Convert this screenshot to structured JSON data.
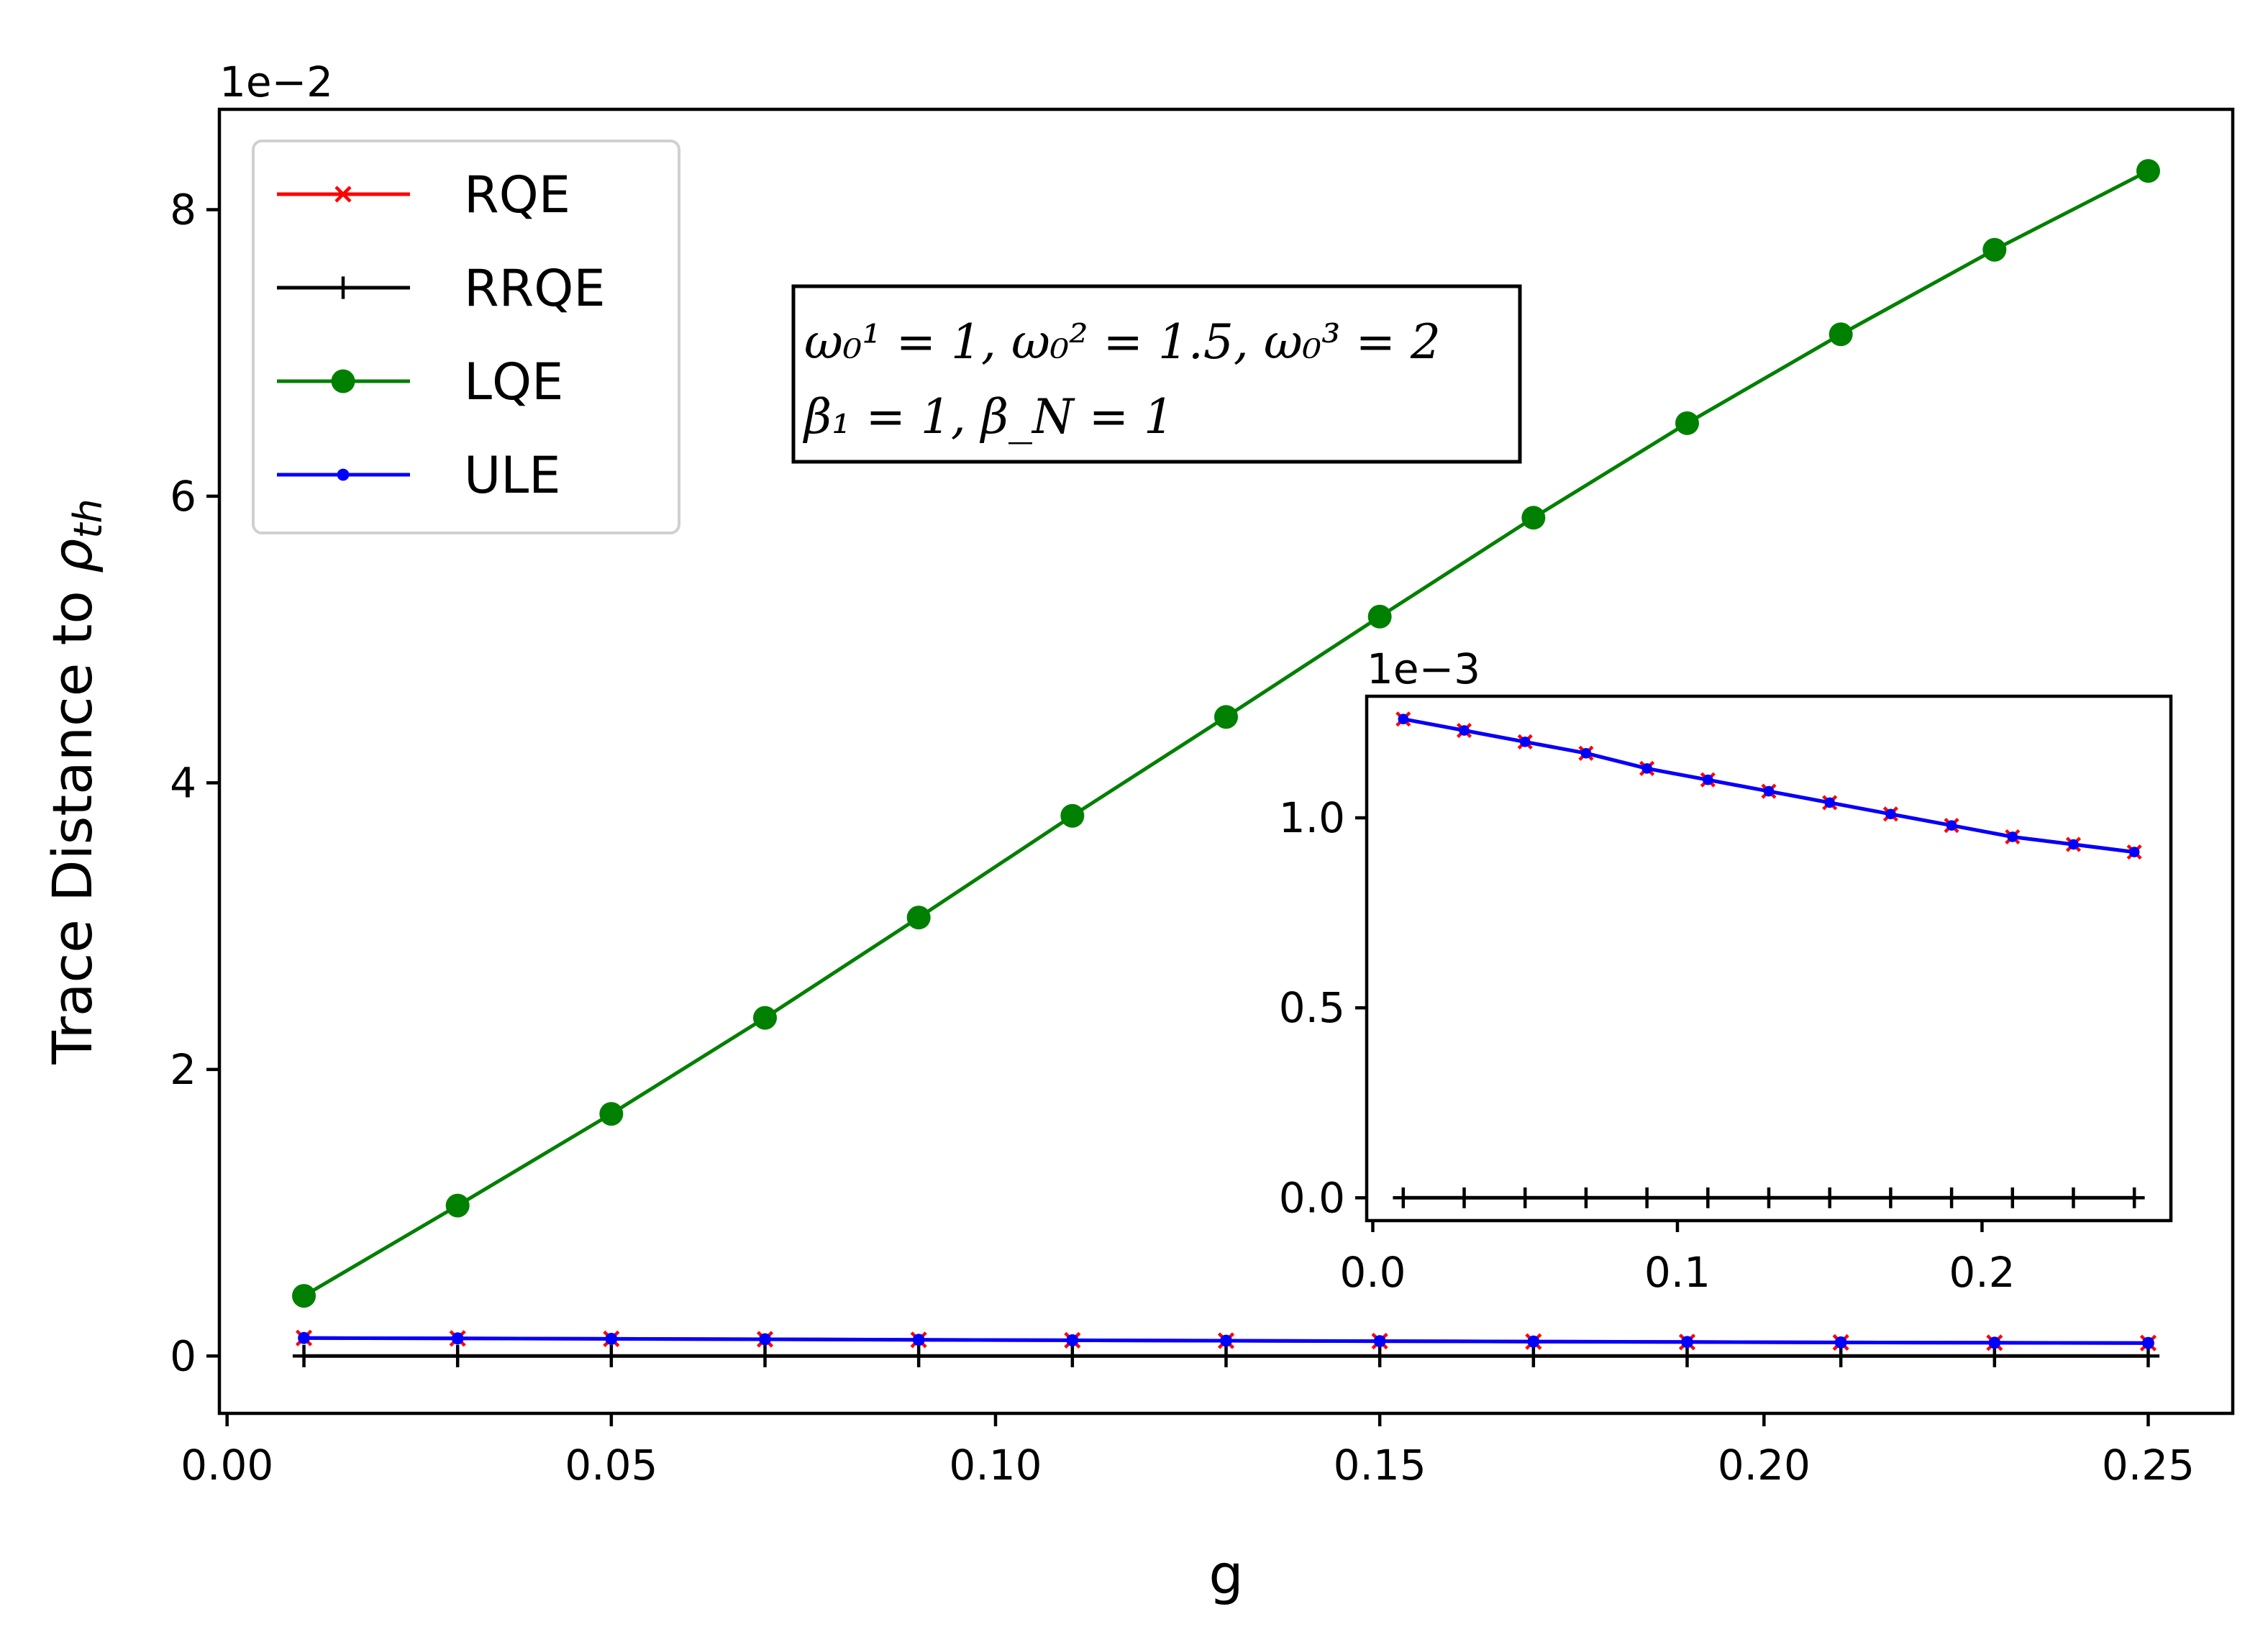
{
  "chart_data": [
    {
      "type": "line",
      "xlabel": "g",
      "ylabel": "Trace Distance to ρ_th",
      "ylabel_parts": {
        "main": "Trace Distance to ",
        "symbol": "ρ",
        "subscript": "th"
      },
      "y_scale_label": "1e−2",
      "xlim": [
        -0.001,
        0.261
      ],
      "ylim": [
        -0.4,
        8.7
      ],
      "x_ticks": [
        0.0,
        0.05,
        0.1,
        0.15,
        0.2,
        0.25
      ],
      "x_tick_labels": [
        "0.00",
        "0.05",
        "0.10",
        "0.15",
        "0.20",
        "0.25"
      ],
      "y_ticks": [
        0,
        2,
        4,
        6,
        8
      ],
      "y_tick_labels": [
        "0",
        "2",
        "4",
        "6",
        "8"
      ],
      "grid": false,
      "legend_position": "top-left",
      "x": [
        0.01,
        0.03,
        0.05,
        0.07,
        0.09,
        0.11,
        0.13,
        0.15,
        0.17,
        0.19,
        0.21,
        0.23,
        0.25
      ],
      "series": [
        {
          "name": "RQE",
          "color": "#ff0000",
          "marker": "x",
          "values": [
            0.126,
            0.123,
            0.12,
            0.117,
            0.113,
            0.11,
            0.107,
            0.104,
            0.101,
            0.098,
            0.095,
            0.093,
            0.091
          ]
        },
        {
          "name": "RRQE",
          "color": "#000000",
          "marker": "+",
          "values": [
            0,
            0,
            0,
            0,
            0,
            0,
            0,
            0,
            0,
            0,
            0,
            0,
            0
          ]
        },
        {
          "name": "LQE",
          "color": "#008000",
          "marker": "circle",
          "values": [
            0.42,
            1.05,
            1.69,
            2.36,
            3.06,
            3.77,
            4.46,
            5.16,
            5.85,
            6.51,
            7.13,
            7.72,
            8.27
          ]
        },
        {
          "name": "ULE",
          "color": "#0000ff",
          "marker": "dot",
          "values": [
            0.126,
            0.123,
            0.12,
            0.117,
            0.113,
            0.11,
            0.107,
            0.104,
            0.101,
            0.098,
            0.095,
            0.093,
            0.091
          ]
        }
      ],
      "annotation": {
        "line1": "ω₀¹ = 1, ω₀² = 1.5, ω₀³ = 2",
        "line2": "β₁ = 1, β_N = 1"
      }
    },
    {
      "type": "line",
      "role": "inset",
      "y_scale_label": "1e−3",
      "xlim": [
        -0.002,
        0.262
      ],
      "ylim": [
        -0.06,
        1.32
      ],
      "x_ticks": [
        0.0,
        0.1,
        0.2
      ],
      "x_tick_labels": [
        "0.0",
        "0.1",
        "0.2"
      ],
      "y_ticks": [
        0.0,
        0.5,
        1.0
      ],
      "y_tick_labels": [
        "0.0",
        "0.5",
        "1.0"
      ],
      "grid": false,
      "x": [
        0.01,
        0.03,
        0.05,
        0.07,
        0.09,
        0.11,
        0.13,
        0.15,
        0.17,
        0.19,
        0.21,
        0.23,
        0.25
      ],
      "series": [
        {
          "name": "RQE",
          "color": "#ff0000",
          "marker": "x",
          "values": [
            1.26,
            1.23,
            1.2,
            1.17,
            1.13,
            1.1,
            1.07,
            1.04,
            1.01,
            0.98,
            0.95,
            0.93,
            0.91
          ]
        },
        {
          "name": "RRQE",
          "color": "#000000",
          "marker": "+",
          "values": [
            0,
            0,
            0,
            0,
            0,
            0,
            0,
            0,
            0,
            0,
            0,
            0,
            0
          ]
        },
        {
          "name": "ULE",
          "color": "#0000ff",
          "marker": "dot",
          "values": [
            1.26,
            1.23,
            1.2,
            1.17,
            1.13,
            1.1,
            1.07,
            1.04,
            1.01,
            0.98,
            0.95,
            0.93,
            0.91
          ]
        }
      ]
    }
  ]
}
